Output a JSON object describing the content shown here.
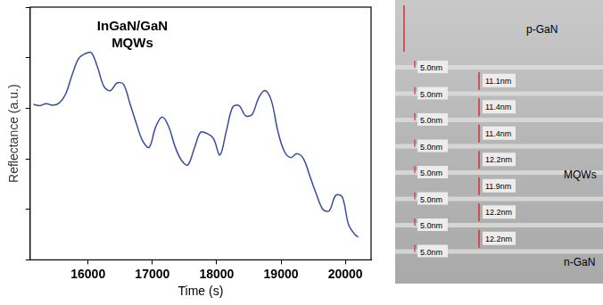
{
  "chart_data": {
    "type": "line",
    "annotations": [
      "InGaN/GaN",
      "MQWs"
    ],
    "x_label": "Time (s)",
    "y_label": "Reflectance (a.u.)",
    "x": [
      15150,
      15250,
      15350,
      15450,
      15550,
      15650,
      15750,
      15850,
      15950,
      16050,
      16150,
      16250,
      16350,
      16450,
      16550,
      16650,
      16750,
      16850,
      16950,
      17050,
      17150,
      17250,
      17350,
      17450,
      17550,
      17650,
      17750,
      17850,
      17950,
      18050,
      18150,
      18250,
      18350,
      18450,
      18550,
      18650,
      18750,
      18850,
      18950,
      19050,
      19150,
      19250,
      19350,
      19450,
      19550,
      19650,
      19750,
      19850,
      19950,
      20050,
      20150,
      20200
    ],
    "values": [
      6.15,
      6.1,
      6.18,
      6.12,
      6.2,
      6.55,
      7.3,
      7.95,
      8.15,
      8.2,
      7.6,
      6.85,
      6.7,
      7.0,
      6.95,
      6.2,
      5.4,
      4.7,
      4.45,
      5.25,
      5.65,
      5.3,
      4.5,
      3.95,
      3.75,
      4.4,
      5.05,
      5.0,
      4.8,
      4.15,
      5.1,
      6.05,
      6.1,
      5.7,
      5.75,
      6.4,
      6.7,
      6.3,
      5.1,
      4.3,
      4.05,
      4.2,
      4.0,
      3.3,
      2.6,
      2.0,
      1.95,
      2.55,
      2.5,
      1.4,
      1.0,
      0.9
    ],
    "color": "#3a4a9c",
    "xlim": [
      15100,
      20400
    ],
    "xticks": [
      16000,
      17000,
      18000,
      19000,
      20000
    ],
    "ylim": [
      0,
      10
    ],
    "yticks": [
      0,
      2,
      4,
      6,
      8,
      10
    ],
    "tick_labels": "x",
    "grid": false
  },
  "micrograph": {
    "regions": {
      "top": "p-GaN",
      "middle": "MQWs",
      "bottom": "n-GaN"
    },
    "well_labels": [
      "5.0nm",
      "5.0nm",
      "5.0nm",
      "5.0nm",
      "5.0nm",
      "5.0nm",
      "5.0nm",
      "5.0nm"
    ],
    "barrier_labels": [
      "11.1nm",
      "11.4nm",
      "11.4nm",
      "12.2nm",
      "11.9nm",
      "12.2nm",
      "12.2nm"
    ]
  }
}
